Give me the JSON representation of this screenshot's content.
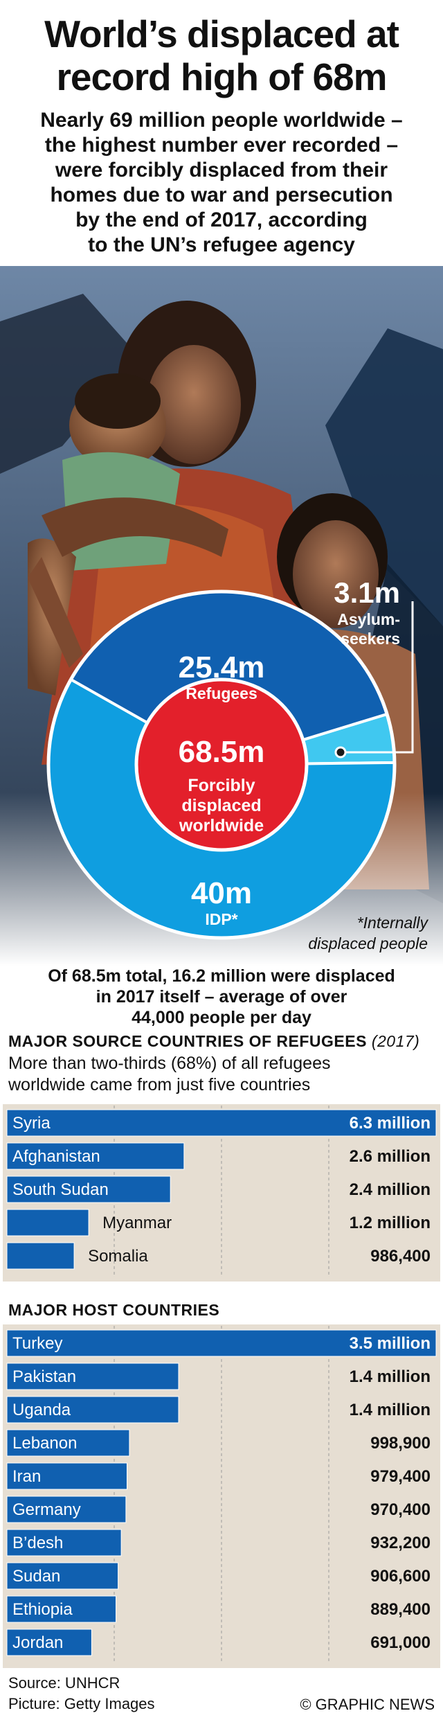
{
  "title": {
    "line1": "World’s displaced at",
    "line2": "record high of 68m"
  },
  "subtitle": {
    "lines": [
      "Nearly 69 million people worldwide –",
      "the highest number ever recorded –",
      "were forcibly displaced from their",
      "homes due to war and persecution",
      "by the end of 2017, according",
      "to the UN’s refugee agency"
    ]
  },
  "colors": {
    "dark_blue": "#1060b0",
    "light_blue": "#0f9ee0",
    "cyan": "#40c8f0",
    "red": "#e3202b",
    "panel": "#e6ded2"
  },
  "donut": {
    "center_value": "68.5m",
    "center_label_lines": [
      "Forcibly",
      "displaced",
      "worldwide"
    ],
    "segments": [
      {
        "value": "25.4m",
        "label": "Refugees",
        "millions": 25.4
      },
      {
        "value": "3.1m",
        "label_lines": [
          "Asylum-",
          "seekers"
        ],
        "millions": 3.1
      },
      {
        "value": "40m",
        "label": "IDP*",
        "millions": 40
      }
    ],
    "footnote_lines": [
      "*Internally",
      "displaced people"
    ]
  },
  "total_note": {
    "lines": [
      "Of 68.5m total, 16.2 million were displaced",
      "in 2017 itself – average of over",
      "44,000 people per day"
    ]
  },
  "source_section": {
    "title": "MAJOR SOURCE COUNTRIES OF REFUGEES",
    "year": "(2017)",
    "subtitle_lines": [
      "More than two-thirds (68%) of all refugees",
      "worldwide came from just five countries"
    ]
  },
  "host_section": {
    "title": "MAJOR HOST COUNTRIES"
  },
  "chart_data": [
    {
      "type": "bar",
      "orientation": "horizontal",
      "title": "MAJOR SOURCE COUNTRIES OF REFUGEES (2017)",
      "categories": [
        "Syria",
        "Afghanistan",
        "South Sudan",
        "Myanmar",
        "Somalia"
      ],
      "values": [
        6300000,
        2600000,
        2400000,
        1200000,
        986400
      ],
      "value_labels": [
        "6.3 million",
        "2.6 million",
        "2.4 million",
        "1.2 million",
        "986,400"
      ],
      "xlim": [
        0,
        6300000
      ]
    },
    {
      "type": "bar",
      "orientation": "horizontal",
      "title": "MAJOR HOST COUNTRIES",
      "categories": [
        "Turkey",
        "Pakistan",
        "Uganda",
        "Lebanon",
        "Iran",
        "Germany",
        "B’desh",
        "Sudan",
        "Ethiopia",
        "Jordan"
      ],
      "values": [
        3500000,
        1400000,
        1400000,
        998900,
        979400,
        970400,
        932200,
        906600,
        889400,
        691000
      ],
      "value_labels": [
        "3.5 million",
        "1.4 million",
        "1.4 million",
        "998,900",
        "979,400",
        "970,400",
        "932,200",
        "906,600",
        "889,400",
        "691,000"
      ],
      "xlim": [
        0,
        3500000
      ]
    }
  ],
  "footer": {
    "source": "Source: UNHCR",
    "picture": "Picture: Getty Images",
    "credit": "© GRAPHIC NEWS"
  }
}
